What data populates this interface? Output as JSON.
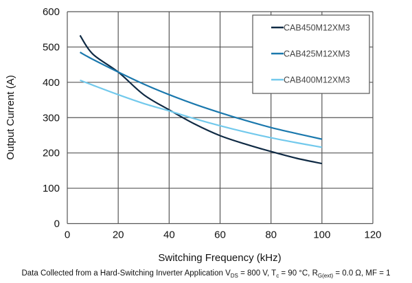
{
  "chart_data": {
    "type": "line",
    "xlabel": "Switching Frequency (kHz)",
    "ylabel": "Output Current (A)",
    "xlim": [
      0,
      120
    ],
    "ylim": [
      0,
      600
    ],
    "xticks": [
      0,
      20,
      40,
      60,
      80,
      100,
      120
    ],
    "yticks": [
      0,
      100,
      200,
      300,
      400,
      500,
      600
    ],
    "grid": true,
    "legend_position": "top-right",
    "x": [
      5,
      10,
      20,
      30,
      40,
      50,
      60,
      70,
      80,
      90,
      100
    ],
    "series": [
      {
        "name": "CAB450M12XM3",
        "color": "#0f2a44",
        "values": [
          533,
          480,
          429,
          365,
          322,
          282,
          249,
          225,
          204,
          185,
          170
        ]
      },
      {
        "name": "CAB425M12XM3",
        "color": "#1a78ad",
        "values": [
          485,
          465,
          429,
          395,
          365,
          338,
          314,
          292,
          272,
          255,
          239
        ]
      },
      {
        "name": "CAB400M12XM3",
        "color": "#72c9ec",
        "values": [
          406,
          392,
          365,
          340,
          319,
          297,
          277,
          259,
          243,
          229,
          216
        ]
      }
    ],
    "footnote": {
      "prefix": "Data Collected from a Hard-Switching Inverter Application V",
      "vds_sub": "DS",
      "vds_val": " = 800 V, T",
      "tc_sub": "c",
      "tc_val": " = 90 °C, R",
      "rg_sub": "G(ext)",
      "rg_val": " = 0.0 Ω, MF = 1"
    }
  }
}
